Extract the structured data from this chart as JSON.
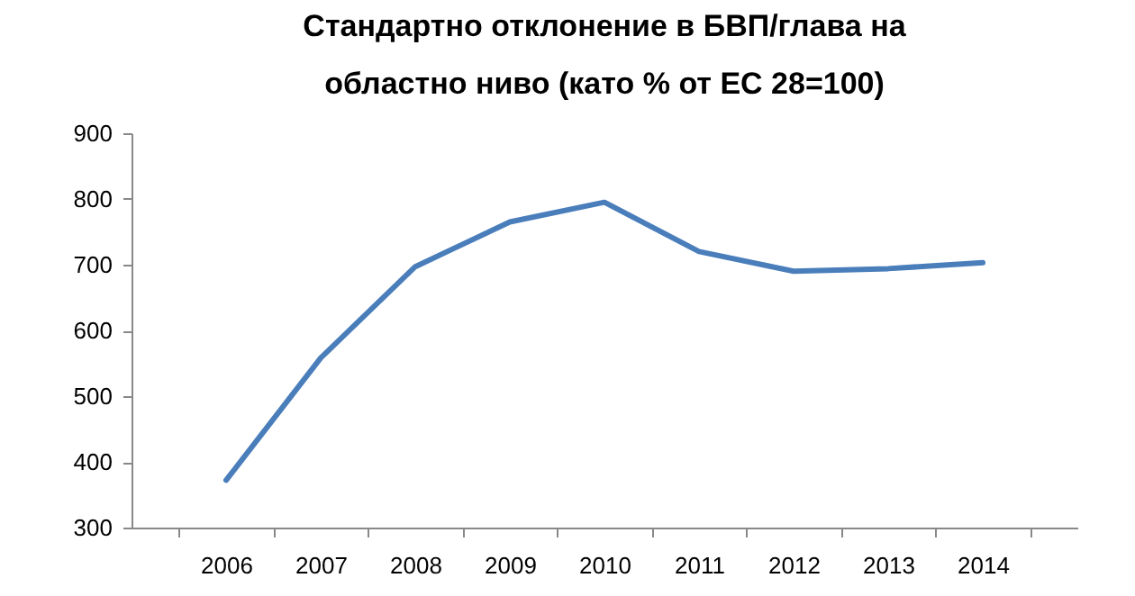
{
  "chart_data": {
    "type": "line",
    "title": "Стандартно отклонение в БВП/глава на областно ниво (като % от ЕС 28=100)",
    "categories": [
      "2006",
      "2007",
      "2008",
      "2009",
      "2010",
      "2011",
      "2012",
      "2013",
      "2014"
    ],
    "series": [
      {
        "color": "#4a7ebb",
        "values": [
          372,
          558,
          697,
          765,
          795,
          720,
          690,
          694,
          703
        ]
      }
    ],
    "ylim": [
      300,
      900
    ],
    "yticks": [
      300,
      400,
      500,
      600,
      700,
      800,
      900
    ],
    "grid": false,
    "legend": false,
    "marker": "none",
    "line_style": "solid"
  }
}
